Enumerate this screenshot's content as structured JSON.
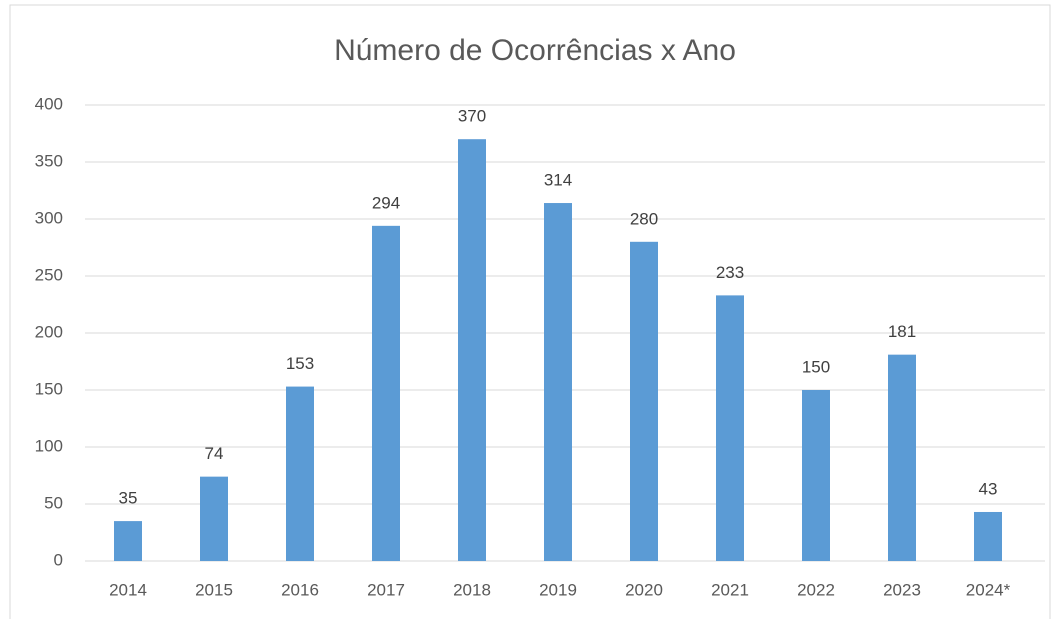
{
  "chart_data": {
    "type": "bar",
    "title": "Número de Ocorrências x Ano",
    "categories": [
      "2014",
      "2015",
      "2016",
      "2017",
      "2018",
      "2019",
      "2020",
      "2021",
      "2022",
      "2023",
      "2024*"
    ],
    "values": [
      35,
      74,
      153,
      294,
      370,
      314,
      280,
      233,
      150,
      181,
      43
    ],
    "color": "#5b9bd5",
    "ylim": [
      0,
      400
    ],
    "yticks": [
      0,
      50,
      100,
      150,
      200,
      250,
      300,
      350,
      400
    ],
    "grid": true
  }
}
